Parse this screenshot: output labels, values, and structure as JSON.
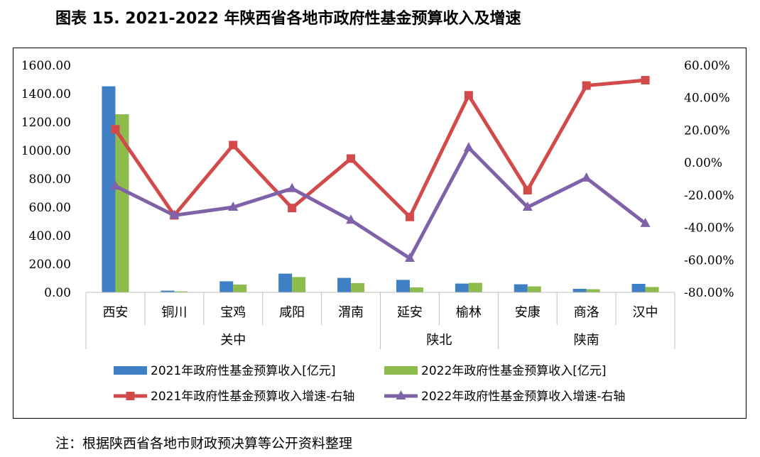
{
  "title": "图表 15.   2021-2022 年陕西省各地市政府性基金预算收入及增速",
  "note": "注：根据陕西省各地市财政预决算等公开资料整理",
  "chart_data": {
    "type": "bar",
    "categories": [
      "西安",
      "铜川",
      "宝鸡",
      "咸阳",
      "渭南",
      "延安",
      "榆林",
      "安康",
      "商洛",
      "汉中"
    ],
    "groups": [
      {
        "label": "关中",
        "categories": [
          "西安",
          "铜川",
          "宝鸡",
          "咸阳",
          "渭南"
        ]
      },
      {
        "label": "陕北",
        "categories": [
          "延安",
          "榆林"
        ]
      },
      {
        "label": "陕南",
        "categories": [
          "安康",
          "商洛",
          "汉中"
        ]
      }
    ],
    "left_axis": {
      "ticks": [
        "1600.00",
        "1400.00",
        "1200.00",
        "1000.00",
        "800.00",
        "600.00",
        "400.00",
        "200.00",
        "0.00"
      ],
      "ylim": [
        0,
        1600
      ]
    },
    "right_axis": {
      "ticks": [
        "60.00%",
        "40.00%",
        "20.00%",
        "0.00%",
        "-20.00%",
        "-40.00%",
        "-60.00%",
        "-80.00%"
      ],
      "ylim": [
        -80,
        60
      ]
    },
    "series": [
      {
        "name": "2021年政府性基金预算收入[亿元]",
        "type": "bar",
        "axis": "left",
        "color": "#3f7fc4",
        "values": [
          1452,
          12,
          78,
          132,
          102,
          88,
          62,
          57,
          25,
          60
        ]
      },
      {
        "name": "2022年政府性基金预算收入[亿元]",
        "type": "bar",
        "axis": "left",
        "color": "#8dbb4c",
        "values": [
          1255,
          7,
          55,
          108,
          65,
          35,
          67,
          42,
          22,
          38
        ]
      },
      {
        "name": "2021年政府性基金预算收入增速-右轴",
        "type": "line",
        "axis": "right",
        "color": "#d24a4a",
        "marker": "square",
        "values": [
          20.5,
          -32.5,
          10.8,
          -28.0,
          2.5,
          -33.5,
          41.5,
          -17.0,
          47.5,
          50.8
        ]
      },
      {
        "name": "2022年政府性基金预算收入增速-右轴",
        "type": "line",
        "axis": "right",
        "color": "#7f62a8",
        "marker": "triangle",
        "values": [
          -14.5,
          -32.5,
          -27.5,
          -16.0,
          -35.5,
          -59.0,
          9.2,
          -27.5,
          -9.5,
          -37.5
        ]
      }
    ]
  }
}
